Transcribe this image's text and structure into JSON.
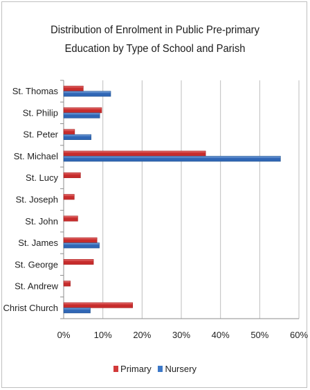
{
  "chart_data": {
    "type": "bar",
    "orientation": "horizontal",
    "title_lines": [
      "Distribution of Enrolment in Public Pre-primary",
      "Education by Type of School and Parish"
    ],
    "categories": [
      "St. Thomas",
      "St. Philip",
      "St. Peter",
      "St. Michael",
      "St. Lucy",
      "St. Joseph",
      "St. John",
      "St. James",
      "St. George",
      "St. Andrew",
      "Christ Church"
    ],
    "series": [
      {
        "name": "Primary",
        "color": "#d23a3a",
        "values": [
          5.0,
          9.7,
          2.8,
          36.2,
          4.3,
          2.7,
          3.6,
          8.5,
          7.6,
          1.7,
          17.6
        ]
      },
      {
        "name": "Nursery",
        "color": "#3c78c8",
        "values": [
          12.0,
          9.2,
          7.0,
          55.3,
          0,
          0,
          0,
          9.1,
          0,
          0,
          6.8
        ]
      }
    ],
    "x_ticks": [
      "0%",
      "10%",
      "20%",
      "30%",
      "40%",
      "50%",
      "60%"
    ],
    "xlim": [
      0,
      60
    ],
    "grid": true,
    "legend_position": "bottom"
  }
}
